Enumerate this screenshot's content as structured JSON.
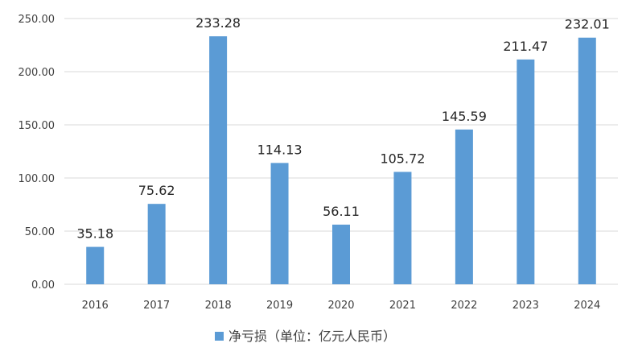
{
  "chart_data": {
    "type": "bar",
    "categories": [
      "2016",
      "2017",
      "2018",
      "2019",
      "2020",
      "2021",
      "2022",
      "2023",
      "2024"
    ],
    "series": [
      {
        "name": "净亏损（单位：亿元人民币）",
        "values": [
          35.18,
          75.62,
          233.28,
          114.13,
          56.11,
          105.72,
          145.59,
          211.47,
          232.01
        ],
        "labels": [
          "35.18",
          "75.62",
          "233.28",
          "114.13",
          "56.11",
          "105.72",
          "145.59",
          "211.47",
          "232.01"
        ],
        "color": "#5B9BD5"
      }
    ],
    "y_ticks": [
      "0.00",
      "50.00",
      "100.00",
      "150.00",
      "200.00",
      "250.00"
    ],
    "ylim": [
      0,
      250
    ],
    "grid": true,
    "legend_position": "bottom",
    "gridline_color": "#d9d9d9"
  }
}
